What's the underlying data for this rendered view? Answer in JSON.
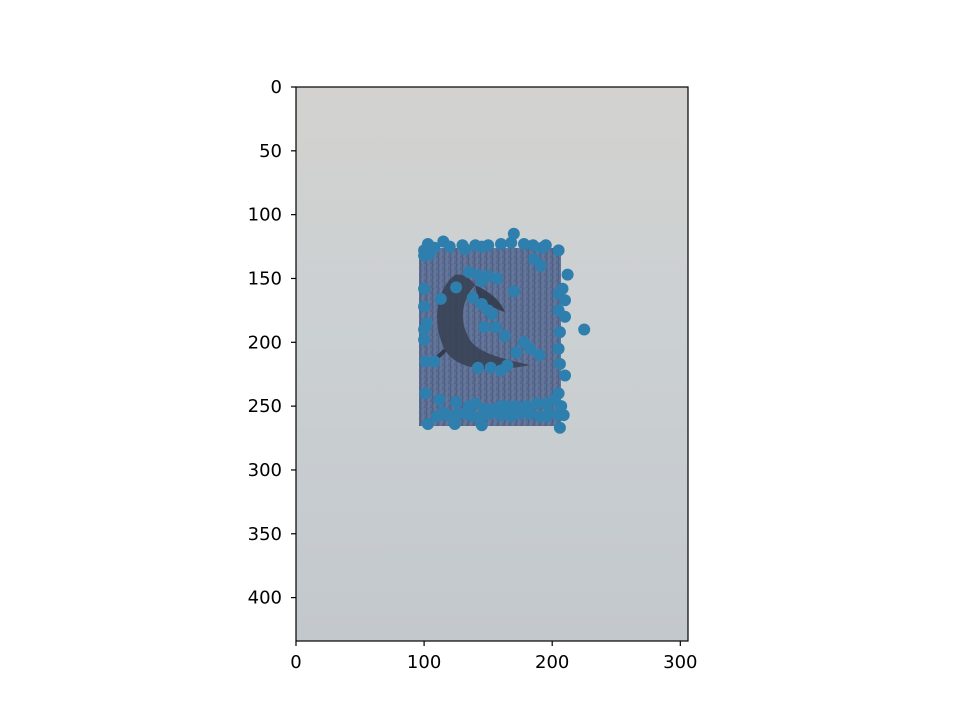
{
  "chart_data": {
    "type": "scatter",
    "title": "",
    "xlabel": "",
    "ylabel": "",
    "xlim": [
      0,
      306
    ],
    "ylim": [
      434,
      0
    ],
    "y_axis_inverted": true,
    "grid": false,
    "legend": "none",
    "background": "photo of a grey-white surface with a dark blue rectangular card showing a gecko/lizard figure",
    "x_ticks": [
      "0",
      "100",
      "200",
      "300"
    ],
    "y_ticks": [
      "0",
      "50",
      "100",
      "150",
      "200",
      "250",
      "300",
      "350",
      "400"
    ],
    "series": [
      {
        "marker_color": "#2e7fae",
        "points": [
          [
            170,
            115
          ],
          [
            115,
            121
          ],
          [
            103,
            123
          ],
          [
            120,
            125
          ],
          [
            130,
            124
          ],
          [
            140,
            124
          ],
          [
            150,
            124
          ],
          [
            160,
            123
          ],
          [
            168,
            122
          ],
          [
            178,
            123
          ],
          [
            185,
            124
          ],
          [
            195,
            124
          ],
          [
            205,
            128
          ],
          [
            100,
            128
          ],
          [
            108,
            126
          ],
          [
            132,
            127
          ],
          [
            145,
            125
          ],
          [
            192,
            126
          ],
          [
            100,
            132
          ],
          [
            104,
            131
          ],
          [
            186,
            135
          ],
          [
            191,
            140
          ],
          [
            212,
            147
          ],
          [
            135,
            145
          ],
          [
            142,
            147
          ],
          [
            150,
            148
          ],
          [
            145,
            152
          ],
          [
            157,
            150
          ],
          [
            125,
            157
          ],
          [
            100,
            158
          ],
          [
            208,
            158
          ],
          [
            205,
            162
          ],
          [
            210,
            167
          ],
          [
            113,
            166
          ],
          [
            170,
            160
          ],
          [
            138,
            165
          ],
          [
            145,
            170
          ],
          [
            150,
            175
          ],
          [
            100,
            172
          ],
          [
            153,
            178
          ],
          [
            205,
            175
          ],
          [
            210,
            180
          ],
          [
            147,
            188
          ],
          [
            156,
            188
          ],
          [
            100,
            190
          ],
          [
            102,
            185
          ],
          [
            206,
            192
          ],
          [
            225,
            190
          ],
          [
            100,
            198
          ],
          [
            163,
            195
          ],
          [
            178,
            200
          ],
          [
            183,
            205
          ],
          [
            205,
            205
          ],
          [
            190,
            210
          ],
          [
            172,
            208
          ],
          [
            101,
            215
          ],
          [
            108,
            215
          ],
          [
            206,
            217
          ],
          [
            142,
            220
          ],
          [
            152,
            220
          ],
          [
            160,
            222
          ],
          [
            165,
            218
          ],
          [
            210,
            226
          ],
          [
            101,
            240
          ],
          [
            112,
            245
          ],
          [
            125,
            247
          ],
          [
            135,
            250
          ],
          [
            140,
            248
          ],
          [
            148,
            252
          ],
          [
            155,
            252
          ],
          [
            160,
            250
          ],
          [
            165,
            250
          ],
          [
            172,
            250
          ],
          [
            180,
            250
          ],
          [
            188,
            248
          ],
          [
            195,
            248
          ],
          [
            202,
            245
          ],
          [
            205,
            240
          ],
          [
            207,
            250
          ],
          [
            110,
            258
          ],
          [
            118,
            257
          ],
          [
            126,
            256
          ],
          [
            132,
            256
          ],
          [
            138,
            258
          ],
          [
            145,
            258
          ],
          [
            152,
            256
          ],
          [
            160,
            257
          ],
          [
            168,
            258
          ],
          [
            175,
            256
          ],
          [
            182,
            256
          ],
          [
            190,
            258
          ],
          [
            196,
            258
          ],
          [
            205,
            257
          ],
          [
            209,
            257
          ],
          [
            103,
            264
          ],
          [
            124,
            264
          ],
          [
            145,
            265
          ],
          [
            206,
            267
          ],
          [
            198,
            255
          ],
          [
            115,
            255
          ]
        ]
      }
    ]
  }
}
